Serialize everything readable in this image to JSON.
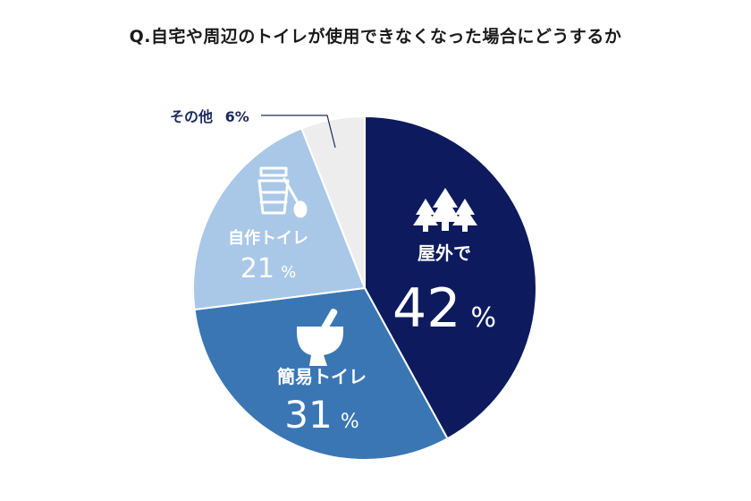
{
  "title": "Q.自宅や周辺のトイレが使用できなくなった場合にどうするか",
  "chart_data": {
    "type": "pie",
    "title": "Q.自宅や周辺のトイレが使用できなくなった場合にどうするか",
    "slices": [
      {
        "label": "屋外で",
        "value": 42,
        "value_label": "42",
        "unit": "%",
        "color": "#0d1b5e",
        "icon": "trees-icon"
      },
      {
        "label": "簡易トイレ",
        "value": 31,
        "value_label": "31",
        "unit": "%",
        "color": "#3a76b4",
        "icon": "toilet-icon"
      },
      {
        "label": "自作トイレ",
        "value": 21,
        "value_label": "21",
        "unit": "%",
        "color": "#a9c8e8",
        "icon": "bucket-icon"
      },
      {
        "label": "その他",
        "value": 6,
        "value_label": "6%",
        "unit": "%",
        "color": "#ededed",
        "icon": ""
      }
    ],
    "start": "12 o'clock",
    "direction": "clockwise",
    "legend": "none"
  },
  "labels": {
    "outside": {
      "name": "屋外で",
      "value": "42",
      "unit": "%"
    },
    "portable": {
      "name": "簡易トイレ",
      "value": "31",
      "unit": "%"
    },
    "homemade": {
      "name": "自作トイレ",
      "value": "21",
      "unit": "%"
    },
    "other": {
      "name": "その他",
      "value": "6%"
    }
  }
}
